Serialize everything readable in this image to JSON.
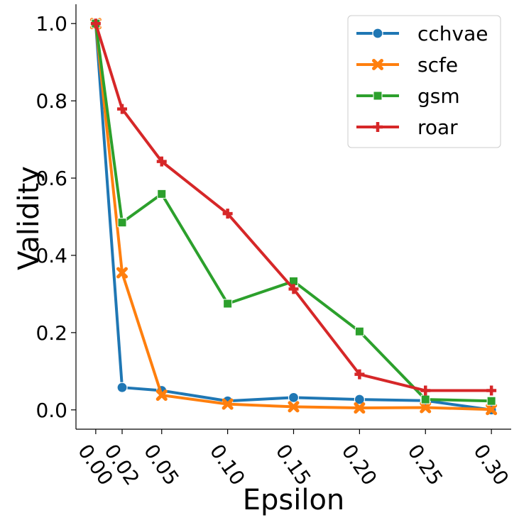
{
  "chart_data": {
    "type": "line",
    "xlabel": "Epsilon",
    "ylabel": "Validity",
    "x": [
      0.0,
      0.02,
      0.05,
      0.1,
      0.15,
      0.2,
      0.25,
      0.3
    ],
    "x_tick_labels": [
      "0.00",
      "0.02",
      "0.05",
      "0.10",
      "0.15",
      "0.20",
      "0.25",
      "0.30"
    ],
    "y_ticks": [
      0.0,
      0.2,
      0.4,
      0.6,
      0.8,
      1.0
    ],
    "y_tick_labels": [
      "0.0",
      "0.2",
      "0.4",
      "0.6",
      "0.8",
      "1.0"
    ],
    "xlim": [
      -0.015,
      0.315
    ],
    "ylim": [
      -0.05,
      1.05
    ],
    "grid": false,
    "legend_position": "top-right",
    "series": [
      {
        "name": "cchvae",
        "color": "#1f77b4",
        "marker": "circle",
        "values": [
          1.0,
          0.058,
          0.05,
          0.023,
          0.032,
          0.027,
          0.024,
          0.0
        ]
      },
      {
        "name": "scfe",
        "color": "#ff7f0e",
        "marker": "x",
        "values": [
          1.0,
          0.355,
          0.038,
          0.015,
          0.008,
          0.005,
          0.006,
          0.001
        ]
      },
      {
        "name": "gsm",
        "color": "#2ca02c",
        "marker": "square",
        "values": [
          1.0,
          0.485,
          0.559,
          0.275,
          0.333,
          0.203,
          0.027,
          0.023
        ]
      },
      {
        "name": "roar",
        "color": "#d62728",
        "marker": "plus",
        "values": [
          1.0,
          0.779,
          0.643,
          0.508,
          0.313,
          0.092,
          0.05,
          0.05
        ]
      }
    ]
  }
}
